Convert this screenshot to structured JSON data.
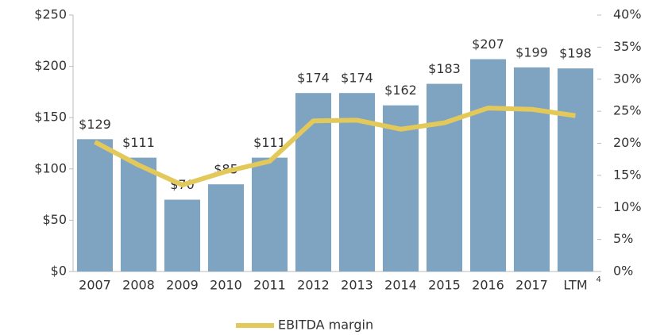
{
  "chart_data": {
    "type": "bar",
    "categories": [
      "2007",
      "2008",
      "2009",
      "2010",
      "2011",
      "2012",
      "2013",
      "2014",
      "2015",
      "2016",
      "2017",
      "LTM"
    ],
    "values": [
      129,
      111,
      70,
      85,
      111,
      174,
      174,
      162,
      183,
      207,
      199,
      198
    ],
    "value_labels": [
      "$129",
      "$111",
      "$70",
      "$85",
      "$111",
      "$174",
      "$174",
      "$162",
      "$183",
      "$207",
      "$199",
      "$198"
    ],
    "color": "#7fa4c2",
    "series": [
      {
        "name": "EBITDA margin",
        "type": "line",
        "axis": "y2",
        "color": "#e3c95a",
        "values": [
          20.2,
          16.6,
          13.5,
          15.6,
          17.2,
          23.5,
          23.6,
          22.2,
          23.2,
          25.5,
          25.3,
          24.3
        ]
      }
    ],
    "ylim": [
      0,
      250
    ],
    "yticks": [
      {
        "value": 0,
        "label": "$0"
      },
      {
        "value": 50,
        "label": "$50"
      },
      {
        "value": 100,
        "label": "$100"
      },
      {
        "value": 150,
        "label": "$150"
      },
      {
        "value": 200,
        "label": "$200"
      },
      {
        "value": 250,
        "label": "$250"
      }
    ],
    "y2lim": [
      0,
      40
    ],
    "y2ticks": [
      {
        "value": 0,
        "label": "0%"
      },
      {
        "value": 5,
        "label": "5%"
      },
      {
        "value": 10,
        "label": "10%"
      },
      {
        "value": 15,
        "label": "15%"
      },
      {
        "value": 20,
        "label": "20%"
      },
      {
        "value": 25,
        "label": "25%"
      },
      {
        "value": 30,
        "label": "30%"
      },
      {
        "value": 35,
        "label": "35%"
      },
      {
        "value": 40,
        "label": "40%"
      }
    ],
    "annotations": [
      {
        "text": "4"
      }
    ],
    "legend": "bottom"
  }
}
